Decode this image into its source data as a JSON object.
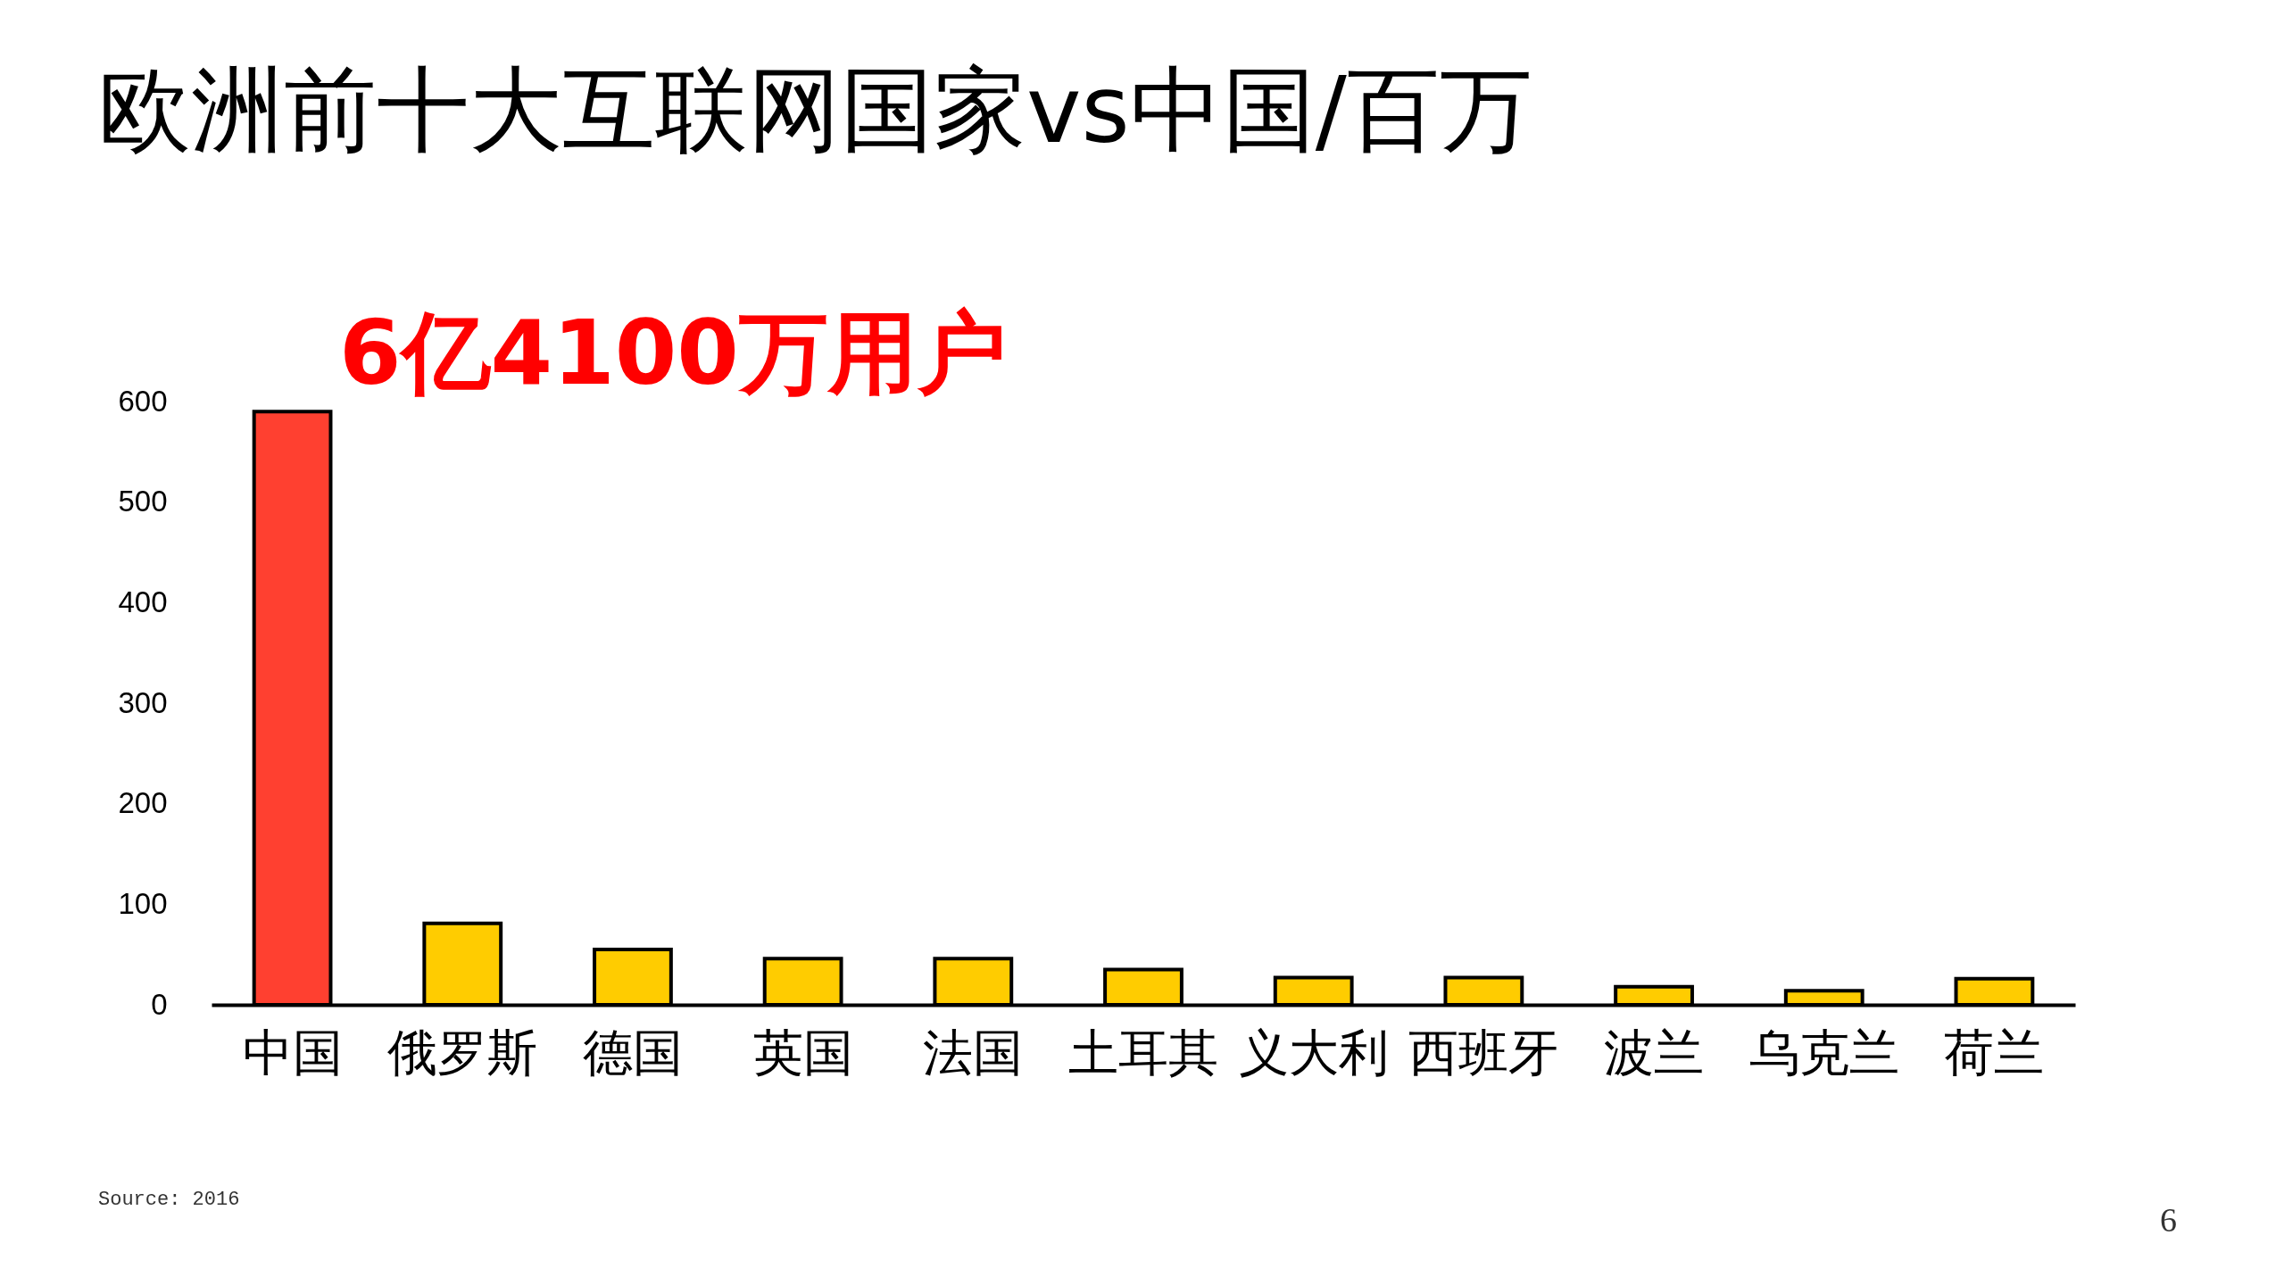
{
  "chart_data": {
    "type": "bar",
    "title": "欧洲前十大互联网国家vs中国/百万",
    "categories": [
      "中国",
      "俄罗斯",
      "德国",
      "英国",
      "法国",
      "土耳其",
      "义大利",
      "西班牙",
      "波兰",
      "乌克兰",
      "荷兰"
    ],
    "values": [
      590,
      81,
      55,
      46,
      46,
      35,
      27,
      27,
      18,
      14,
      26
    ],
    "colors": [
      "#ff4030",
      "#ffcc00",
      "#ffcc00",
      "#ffcc00",
      "#ffcc00",
      "#ffcc00",
      "#ffcc00",
      "#ffcc00",
      "#ffcc00",
      "#ffcc00",
      "#ffcc00"
    ],
    "ylim": [
      0,
      600
    ],
    "yticks": [
      0,
      100,
      200,
      300,
      400,
      500,
      600
    ],
    "grid": false,
    "annotations": [
      "6亿4100万用户",
      "Source: 2016",
      "6"
    ]
  }
}
